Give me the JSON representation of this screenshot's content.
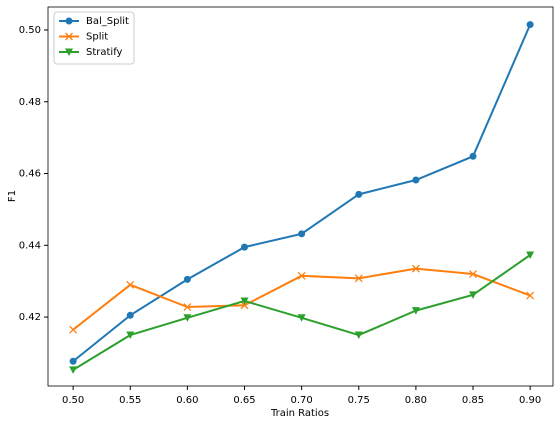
{
  "chart_data": {
    "type": "line",
    "xlabel": "Train Ratios",
    "ylabel": "F1",
    "x": [
      0.5,
      0.55,
      0.6,
      0.65,
      0.7,
      0.75,
      0.8,
      0.85,
      0.9
    ],
    "series": [
      {
        "name": "Bal_Split",
        "color": "#1f77b4",
        "marker": "circle",
        "values": [
          0.4077,
          0.4205,
          0.4305,
          0.4395,
          0.4432,
          0.4542,
          0.4582,
          0.4648,
          0.5015
        ]
      },
      {
        "name": "Split",
        "color": "#ff7f0e",
        "marker": "x",
        "values": [
          0.4165,
          0.429,
          0.4228,
          0.4233,
          0.4315,
          0.4308,
          0.4335,
          0.432,
          0.426
        ]
      },
      {
        "name": "Stratify",
        "color": "#2ca02c",
        "marker": "triangle-down",
        "values": [
          0.4053,
          0.415,
          0.4198,
          0.4245,
          0.4198,
          0.415,
          0.4218,
          0.4262,
          0.4373
        ]
      }
    ],
    "xlim": [
      0.478,
      0.92
    ],
    "ylim": [
      0.4008,
      0.5064
    ],
    "xticks": [
      {
        "value": 0.5,
        "label": "0.50"
      },
      0.55,
      {
        "value": 0.6,
        "label": "0.60"
      },
      0.65,
      {
        "value": 0.7,
        "label": "0.70"
      },
      0.75,
      {
        "value": 0.8,
        "label": "0.80"
      },
      0.85,
      {
        "value": 0.9,
        "label": "0.90"
      }
    ],
    "yticks": [
      0.42,
      0.44,
      0.46,
      0.48,
      {
        "value": 0.5,
        "label": "0.50"
      }
    ],
    "grid": false,
    "legend": "upper-left"
  }
}
